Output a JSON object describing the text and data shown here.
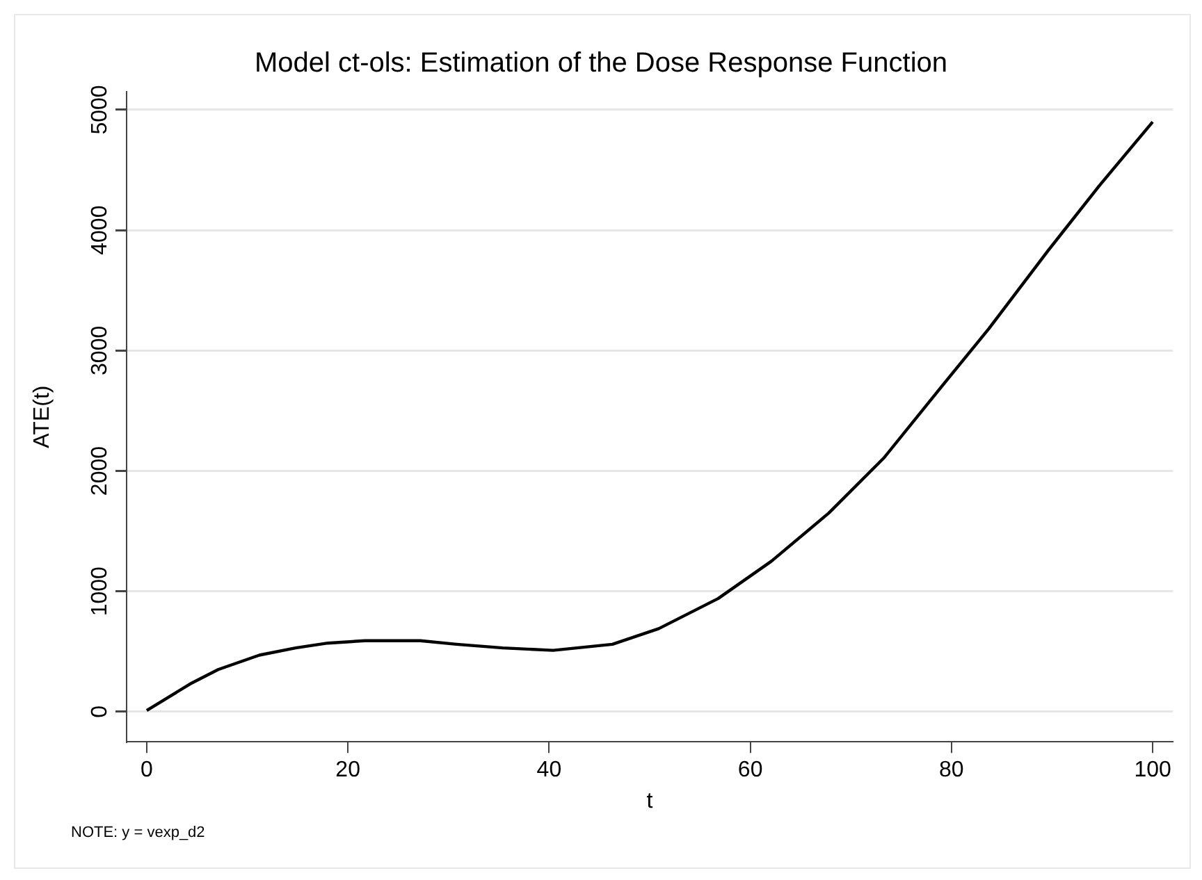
{
  "chart_data": {
    "type": "line",
    "title": "Model ct-ols: Estimation of the Dose Response Function",
    "xlabel": "t",
    "ylabel": "ATE(t)",
    "annotations": [
      "NOTE: y = vexp_d2"
    ],
    "x": [
      0,
      4.3,
      7.1,
      11.2,
      14.8,
      18,
      21.7,
      27.2,
      30.8,
      35.4,
      40.4,
      46.3,
      50.9,
      56.8,
      62.1,
      67.8,
      73.3,
      79.2,
      83.7,
      89.6,
      94.7,
      100
    ],
    "series": [
      {
        "color": "#000000",
        "values": [
          10,
          230,
          350,
          470,
          530,
          570,
          590,
          590,
          560,
          530,
          510,
          560,
          690,
          940,
          1250,
          1650,
          2110,
          2720,
          3180,
          3830,
          4370,
          4900
        ]
      }
    ],
    "xlim": [
      -2,
      102
    ],
    "xticks": [
      0,
      20,
      40,
      60,
      80,
      100
    ],
    "ylim": [
      -250,
      5150
    ],
    "yticks": [
      0,
      1000,
      2000,
      3000,
      4000,
      5000
    ],
    "grid": "y",
    "legend": false,
    "marker": "none",
    "line_style": "solid"
  }
}
